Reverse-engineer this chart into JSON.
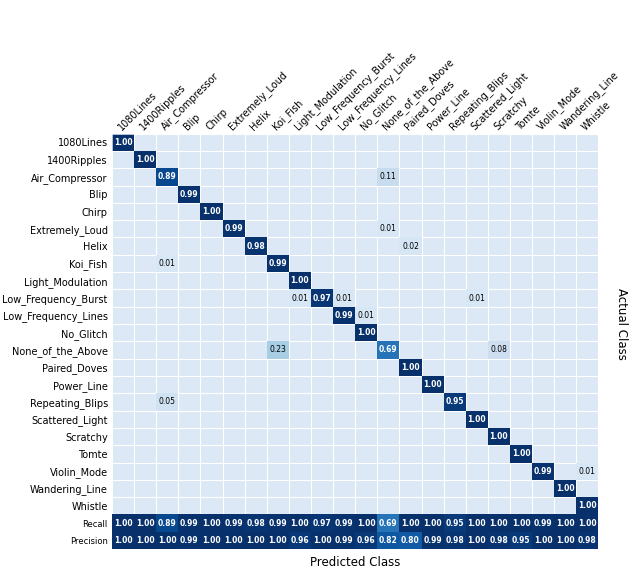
{
  "classes": [
    "1080Lines",
    "1400Ripples",
    "Air_Compressor",
    "Blip",
    "Chirp",
    "Extremely_Loud",
    "Helix",
    "Koi_Fish",
    "Light_Modulation",
    "Low_Frequency_Burst",
    "Low_Frequency_Lines",
    "No_Glitch",
    "None_of_the_Above",
    "Paired_Doves",
    "Power_Line",
    "Repeating_Blips",
    "Scattered_Light",
    "Scratchy",
    "Tomte",
    "Violin_Mode",
    "Wandering_Line",
    "Whistle"
  ],
  "matrix": [
    [
      1.0,
      0,
      0,
      0,
      0,
      0,
      0,
      0,
      0,
      0,
      0,
      0,
      0,
      0,
      0,
      0,
      0,
      0,
      0,
      0,
      0,
      0
    ],
    [
      0,
      1.0,
      0,
      0,
      0,
      0,
      0,
      0,
      0,
      0,
      0,
      0,
      0,
      0,
      0,
      0,
      0,
      0,
      0,
      0,
      0,
      0
    ],
    [
      0,
      0,
      0.89,
      0,
      0,
      0,
      0,
      0,
      0,
      0,
      0,
      0,
      0.11,
      0,
      0,
      0,
      0,
      0,
      0,
      0,
      0,
      0
    ],
    [
      0,
      0,
      0,
      0.99,
      0,
      0,
      0,
      0,
      0,
      0,
      0,
      0,
      0,
      0,
      0,
      0,
      0,
      0,
      0,
      0,
      0,
      0
    ],
    [
      0,
      0,
      0,
      0,
      1.0,
      0,
      0,
      0,
      0,
      0,
      0,
      0,
      0,
      0,
      0,
      0,
      0,
      0,
      0,
      0,
      0,
      0
    ],
    [
      0,
      0,
      0,
      0,
      0,
      0.99,
      0,
      0,
      0,
      0,
      0,
      0,
      0.01,
      0,
      0,
      0,
      0,
      0,
      0,
      0,
      0,
      0
    ],
    [
      0,
      0,
      0,
      0,
      0,
      0,
      0.98,
      0,
      0,
      0,
      0,
      0,
      0,
      0.02,
      0,
      0,
      0,
      0,
      0,
      0,
      0,
      0
    ],
    [
      0,
      0,
      0.01,
      0,
      0,
      0,
      0,
      0.99,
      0,
      0,
      0,
      0,
      0,
      0,
      0,
      0,
      0,
      0,
      0,
      0,
      0,
      0
    ],
    [
      0,
      0,
      0,
      0,
      0,
      0,
      0,
      0,
      1.0,
      0,
      0,
      0,
      0,
      0,
      0,
      0,
      0,
      0,
      0,
      0,
      0,
      0
    ],
    [
      0,
      0,
      0,
      0,
      0,
      0,
      0,
      0,
      0.01,
      0.97,
      0.01,
      0,
      0,
      0,
      0,
      0,
      0.01,
      0,
      0,
      0,
      0,
      0
    ],
    [
      0,
      0,
      0,
      0,
      0,
      0,
      0,
      0,
      0,
      0,
      0.99,
      0.01,
      0,
      0,
      0,
      0,
      0,
      0,
      0,
      0,
      0,
      0
    ],
    [
      0,
      0,
      0,
      0,
      0,
      0,
      0,
      0,
      0,
      0,
      0,
      1.0,
      0,
      0,
      0,
      0,
      0,
      0,
      0,
      0,
      0,
      0
    ],
    [
      0,
      0,
      0,
      0,
      0,
      0,
      0,
      0.23,
      0,
      0,
      0,
      0,
      0.69,
      0,
      0,
      0,
      0,
      0.08,
      0,
      0,
      0,
      0
    ],
    [
      0,
      0,
      0,
      0,
      0,
      0,
      0,
      0,
      0,
      0,
      0,
      0,
      0,
      1.0,
      0,
      0,
      0,
      0,
      0,
      0,
      0,
      0
    ],
    [
      0,
      0,
      0,
      0,
      0,
      0,
      0,
      0,
      0,
      0,
      0,
      0,
      0,
      0,
      1.0,
      0,
      0,
      0,
      0,
      0,
      0,
      0
    ],
    [
      0,
      0,
      0.05,
      0,
      0,
      0,
      0,
      0,
      0,
      0,
      0,
      0,
      0,
      0,
      0,
      0.95,
      0,
      0,
      0,
      0,
      0,
      0
    ],
    [
      0,
      0,
      0,
      0,
      0,
      0,
      0,
      0,
      0,
      0,
      0,
      0,
      0,
      0,
      0,
      0,
      1.0,
      0,
      0,
      0,
      0,
      0
    ],
    [
      0,
      0,
      0,
      0,
      0,
      0,
      0,
      0,
      0,
      0,
      0,
      0,
      0,
      0,
      0,
      0,
      0,
      1.0,
      0,
      0,
      0,
      0
    ],
    [
      0,
      0,
      0,
      0,
      0,
      0,
      0,
      0,
      0,
      0,
      0,
      0,
      0,
      0,
      0,
      0,
      0,
      0,
      1.0,
      0,
      0,
      0
    ],
    [
      0,
      0,
      0,
      0,
      0,
      0,
      0,
      0,
      0,
      0,
      0,
      0,
      0,
      0,
      0,
      0,
      0,
      0,
      0,
      0.99,
      0,
      0.01
    ],
    [
      0,
      0,
      0,
      0,
      0,
      0,
      0,
      0,
      0,
      0,
      0,
      0,
      0,
      0,
      0,
      0,
      0,
      0,
      0,
      0,
      1.0,
      0
    ],
    [
      0,
      0,
      0,
      0,
      0,
      0,
      0,
      0,
      0,
      0,
      0,
      0,
      0,
      0,
      0,
      0,
      0,
      0,
      0,
      0,
      0,
      1.0
    ]
  ],
  "recall": [
    1.0,
    1.0,
    0.89,
    0.99,
    1.0,
    0.99,
    0.98,
    0.99,
    1.0,
    0.97,
    0.99,
    1.0,
    0.69,
    1.0,
    1.0,
    0.95,
    1.0,
    1.0,
    1.0,
    0.99,
    1.0,
    1.0
  ],
  "precision": [
    1.0,
    1.0,
    1.0,
    0.99,
    1.0,
    1.0,
    1.0,
    1.0,
    0.96,
    1.0,
    0.99,
    0.96,
    0.82,
    0.8,
    0.99,
    0.98,
    1.0,
    0.98,
    0.95,
    1.0,
    1.0,
    0.98
  ],
  "title_xlabel": "Predicted Class",
  "title_ylabel": "Actual Class",
  "bg_color": "#dce8f5",
  "dark_text_color": "#ffffff",
  "light_text_color": "#000000",
  "label_fontsize": 7.0,
  "cell_fontsize": 5.5,
  "row_label_fontsize": 6.0,
  "xlabel_fontsize": 8.5,
  "ylabel_fontsize": 8.5
}
